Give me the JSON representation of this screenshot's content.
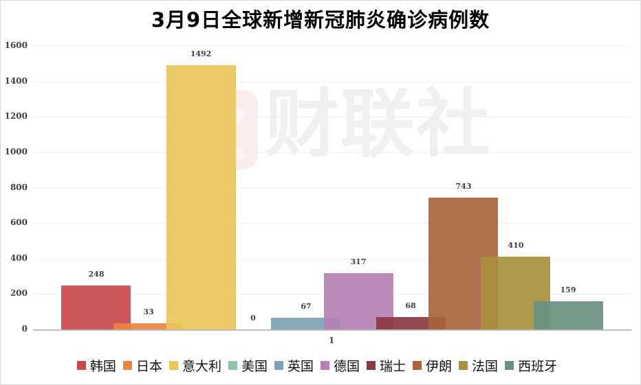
{
  "title": "3月9日全球新增新冠肺炎确诊病例数",
  "watermark": {
    "text": "财联社",
    "logo": "C"
  },
  "chart_data": {
    "type": "bar",
    "title": "3月9日全球新增新冠肺炎确诊病例数",
    "xlabel": "",
    "ylabel": "",
    "categories": [
      "1"
    ],
    "ylim": [
      0,
      1600
    ],
    "yticks": [
      0,
      200,
      400,
      600,
      800,
      1000,
      1200,
      1400,
      1600
    ],
    "grid": true,
    "legend_position": "bottom",
    "series": [
      {
        "name": "韩国",
        "values": [
          248
        ],
        "color": "#c9494b"
      },
      {
        "name": "日本",
        "values": [
          33
        ],
        "color": "#ee8343"
      },
      {
        "name": "意大利",
        "values": [
          1492
        ],
        "color": "#ebc65b"
      },
      {
        "name": "美国",
        "values": [
          0
        ],
        "color": "#8ec4a8"
      },
      {
        "name": "英国",
        "values": [
          67
        ],
        "color": "#7ea2b4"
      },
      {
        "name": "德国",
        "values": [
          317
        ],
        "color": "#b581b3"
      },
      {
        "name": "瑞士",
        "values": [
          68
        ],
        "color": "#8b3a42"
      },
      {
        "name": "伊朗",
        "values": [
          743
        ],
        "color": "#a8643d"
      },
      {
        "name": "法国",
        "values": [
          410
        ],
        "color": "#a8903d"
      },
      {
        "name": "西班牙",
        "values": [
          159
        ],
        "color": "#6a9180"
      }
    ]
  }
}
